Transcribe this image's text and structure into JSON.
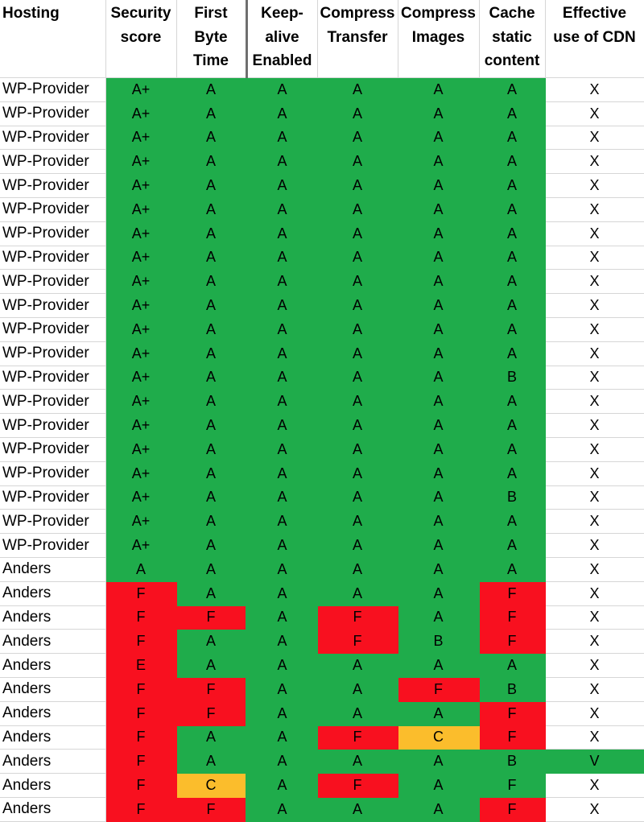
{
  "headers": [
    "Hosting",
    "Security score",
    "First Byte Time",
    "Keep-alive Enabled",
    "Compress Transfer",
    "Compress Images",
    "Cache static content",
    "Effective use of CDN"
  ],
  "header_lines": [
    [
      "Hosting"
    ],
    [
      "Security",
      "score"
    ],
    [
      "First",
      "Byte",
      "Time"
    ],
    [
      "Keep-",
      "alive",
      "Enabled"
    ],
    [
      "Compress",
      "Transfer"
    ],
    [
      "Compress",
      "Images"
    ],
    [
      "Cache",
      "static",
      "content"
    ],
    [
      "Effective",
      "use of CDN"
    ]
  ],
  "colors": {
    "green": "#1fac4b",
    "red": "#f8101f",
    "yellow": "#fbbd2c",
    "white": "#ffffff"
  },
  "rows": [
    {
      "host": "WP-Provider",
      "cells": [
        [
          "A+",
          "g"
        ],
        [
          "A",
          "g"
        ],
        [
          "A",
          "g"
        ],
        [
          "A",
          "g"
        ],
        [
          "A",
          "g"
        ],
        [
          "A",
          "g"
        ],
        [
          "X",
          "w"
        ]
      ]
    },
    {
      "host": "WP-Provider",
      "cells": [
        [
          "A+",
          "g"
        ],
        [
          "A",
          "g"
        ],
        [
          "A",
          "g"
        ],
        [
          "A",
          "g"
        ],
        [
          "A",
          "g"
        ],
        [
          "A",
          "g"
        ],
        [
          "X",
          "w"
        ]
      ]
    },
    {
      "host": "WP-Provider",
      "cells": [
        [
          "A+",
          "g"
        ],
        [
          "A",
          "g"
        ],
        [
          "A",
          "g"
        ],
        [
          "A",
          "g"
        ],
        [
          "A",
          "g"
        ],
        [
          "A",
          "g"
        ],
        [
          "X",
          "w"
        ]
      ]
    },
    {
      "host": "WP-Provider",
      "cells": [
        [
          "A+",
          "g"
        ],
        [
          "A",
          "g"
        ],
        [
          "A",
          "g"
        ],
        [
          "A",
          "g"
        ],
        [
          "A",
          "g"
        ],
        [
          "A",
          "g"
        ],
        [
          "X",
          "w"
        ]
      ]
    },
    {
      "host": "WP-Provider",
      "cells": [
        [
          "A+",
          "g"
        ],
        [
          "A",
          "g"
        ],
        [
          "A",
          "g"
        ],
        [
          "A",
          "g"
        ],
        [
          "A",
          "g"
        ],
        [
          "A",
          "g"
        ],
        [
          "X",
          "w"
        ]
      ]
    },
    {
      "host": "WP-Provider",
      "cells": [
        [
          "A+",
          "g"
        ],
        [
          "A",
          "g"
        ],
        [
          "A",
          "g"
        ],
        [
          "A",
          "g"
        ],
        [
          "A",
          "g"
        ],
        [
          "A",
          "g"
        ],
        [
          "X",
          "w"
        ]
      ]
    },
    {
      "host": "WP-Provider",
      "cells": [
        [
          "A+",
          "g"
        ],
        [
          "A",
          "g"
        ],
        [
          "A",
          "g"
        ],
        [
          "A",
          "g"
        ],
        [
          "A",
          "g"
        ],
        [
          "A",
          "g"
        ],
        [
          "X",
          "w"
        ]
      ]
    },
    {
      "host": "WP-Provider",
      "cells": [
        [
          "A+",
          "g"
        ],
        [
          "A",
          "g"
        ],
        [
          "A",
          "g"
        ],
        [
          "A",
          "g"
        ],
        [
          "A",
          "g"
        ],
        [
          "A",
          "g"
        ],
        [
          "X",
          "w"
        ]
      ]
    },
    {
      "host": "WP-Provider",
      "cells": [
        [
          "A+",
          "g"
        ],
        [
          "A",
          "g"
        ],
        [
          "A",
          "g"
        ],
        [
          "A",
          "g"
        ],
        [
          "A",
          "g"
        ],
        [
          "A",
          "g"
        ],
        [
          "X",
          "w"
        ]
      ]
    },
    {
      "host": "WP-Provider",
      "cells": [
        [
          "A+",
          "g"
        ],
        [
          "A",
          "g"
        ],
        [
          "A",
          "g"
        ],
        [
          "A",
          "g"
        ],
        [
          "A",
          "g"
        ],
        [
          "A",
          "g"
        ],
        [
          "X",
          "w"
        ]
      ]
    },
    {
      "host": "WP-Provider",
      "cells": [
        [
          "A+",
          "g"
        ],
        [
          "A",
          "g"
        ],
        [
          "A",
          "g"
        ],
        [
          "A",
          "g"
        ],
        [
          "A",
          "g"
        ],
        [
          "A",
          "g"
        ],
        [
          "X",
          "w"
        ]
      ]
    },
    {
      "host": "WP-Provider",
      "cells": [
        [
          "A+",
          "g"
        ],
        [
          "A",
          "g"
        ],
        [
          "A",
          "g"
        ],
        [
          "A",
          "g"
        ],
        [
          "A",
          "g"
        ],
        [
          "A",
          "g"
        ],
        [
          "X",
          "w"
        ]
      ]
    },
    {
      "host": "WP-Provider",
      "cells": [
        [
          "A+",
          "g"
        ],
        [
          "A",
          "g"
        ],
        [
          "A",
          "g"
        ],
        [
          "A",
          "g"
        ],
        [
          "A",
          "g"
        ],
        [
          "B",
          "g"
        ],
        [
          "X",
          "w"
        ]
      ]
    },
    {
      "host": "WP-Provider",
      "cells": [
        [
          "A+",
          "g"
        ],
        [
          "A",
          "g"
        ],
        [
          "A",
          "g"
        ],
        [
          "A",
          "g"
        ],
        [
          "A",
          "g"
        ],
        [
          "A",
          "g"
        ],
        [
          "X",
          "w"
        ]
      ]
    },
    {
      "host": "WP-Provider",
      "cells": [
        [
          "A+",
          "g"
        ],
        [
          "A",
          "g"
        ],
        [
          "A",
          "g"
        ],
        [
          "A",
          "g"
        ],
        [
          "A",
          "g"
        ],
        [
          "A",
          "g"
        ],
        [
          "X",
          "w"
        ]
      ]
    },
    {
      "host": "WP-Provider",
      "cells": [
        [
          "A+",
          "g"
        ],
        [
          "A",
          "g"
        ],
        [
          "A",
          "g"
        ],
        [
          "A",
          "g"
        ],
        [
          "A",
          "g"
        ],
        [
          "A",
          "g"
        ],
        [
          "X",
          "w"
        ]
      ]
    },
    {
      "host": "WP-Provider",
      "cells": [
        [
          "A+",
          "g"
        ],
        [
          "A",
          "g"
        ],
        [
          "A",
          "g"
        ],
        [
          "A",
          "g"
        ],
        [
          "A",
          "g"
        ],
        [
          "A",
          "g"
        ],
        [
          "X",
          "w"
        ]
      ]
    },
    {
      "host": "WP-Provider",
      "cells": [
        [
          "A+",
          "g"
        ],
        [
          "A",
          "g"
        ],
        [
          "A",
          "g"
        ],
        [
          "A",
          "g"
        ],
        [
          "A",
          "g"
        ],
        [
          "B",
          "g"
        ],
        [
          "X",
          "w"
        ]
      ]
    },
    {
      "host": "WP-Provider",
      "cells": [
        [
          "A+",
          "g"
        ],
        [
          "A",
          "g"
        ],
        [
          "A",
          "g"
        ],
        [
          "A",
          "g"
        ],
        [
          "A",
          "g"
        ],
        [
          "A",
          "g"
        ],
        [
          "X",
          "w"
        ]
      ]
    },
    {
      "host": "WP-Provider",
      "cells": [
        [
          "A+",
          "g"
        ],
        [
          "A",
          "g"
        ],
        [
          "A",
          "g"
        ],
        [
          "A",
          "g"
        ],
        [
          "A",
          "g"
        ],
        [
          "A",
          "g"
        ],
        [
          "X",
          "w"
        ]
      ]
    },
    {
      "host": "Anders",
      "cells": [
        [
          "A",
          "g"
        ],
        [
          "A",
          "g"
        ],
        [
          "A",
          "g"
        ],
        [
          "A",
          "g"
        ],
        [
          "A",
          "g"
        ],
        [
          "A",
          "g"
        ],
        [
          "X",
          "w"
        ]
      ]
    },
    {
      "host": "Anders",
      "cells": [
        [
          "F",
          "r"
        ],
        [
          "A",
          "g"
        ],
        [
          "A",
          "g"
        ],
        [
          "A",
          "g"
        ],
        [
          "A",
          "g"
        ],
        [
          "F",
          "r"
        ],
        [
          "X",
          "w"
        ]
      ]
    },
    {
      "host": "Anders",
      "cells": [
        [
          "F",
          "r"
        ],
        [
          "F",
          "r"
        ],
        [
          "A",
          "g"
        ],
        [
          "F",
          "r"
        ],
        [
          "A",
          "g"
        ],
        [
          "F",
          "r"
        ],
        [
          "X",
          "w"
        ]
      ]
    },
    {
      "host": "Anders",
      "cells": [
        [
          "F",
          "r"
        ],
        [
          "A",
          "g"
        ],
        [
          "A",
          "g"
        ],
        [
          "F",
          "r"
        ],
        [
          "B",
          "g"
        ],
        [
          "F",
          "r"
        ],
        [
          "X",
          "w"
        ]
      ]
    },
    {
      "host": "Anders",
      "cells": [
        [
          "E",
          "r"
        ],
        [
          "A",
          "g"
        ],
        [
          "A",
          "g"
        ],
        [
          "A",
          "g"
        ],
        [
          "A",
          "g"
        ],
        [
          "A",
          "g"
        ],
        [
          "X",
          "w"
        ]
      ]
    },
    {
      "host": "Anders",
      "cells": [
        [
          "F",
          "r"
        ],
        [
          "F",
          "r"
        ],
        [
          "A",
          "g"
        ],
        [
          "A",
          "g"
        ],
        [
          "F",
          "r"
        ],
        [
          "B",
          "g"
        ],
        [
          "X",
          "w"
        ]
      ]
    },
    {
      "host": "Anders",
      "cells": [
        [
          "F",
          "r"
        ],
        [
          "F",
          "r"
        ],
        [
          "A",
          "g"
        ],
        [
          "A",
          "g"
        ],
        [
          "A",
          "g"
        ],
        [
          "F",
          "r"
        ],
        [
          "X",
          "w"
        ]
      ]
    },
    {
      "host": "Anders",
      "cells": [
        [
          "F",
          "r"
        ],
        [
          "A",
          "g"
        ],
        [
          "A",
          "g"
        ],
        [
          "F",
          "r"
        ],
        [
          "C",
          "y"
        ],
        [
          "F",
          "r"
        ],
        [
          "X",
          "w"
        ]
      ]
    },
    {
      "host": "Anders",
      "cells": [
        [
          "F",
          "r"
        ],
        [
          "A",
          "g"
        ],
        [
          "A",
          "g"
        ],
        [
          "A",
          "g"
        ],
        [
          "A",
          "g"
        ],
        [
          "B",
          "g"
        ],
        [
          "V",
          "g"
        ]
      ]
    },
    {
      "host": "Anders",
      "cells": [
        [
          "F",
          "r"
        ],
        [
          "C",
          "y"
        ],
        [
          "A",
          "g"
        ],
        [
          "F",
          "r"
        ],
        [
          "A",
          "g"
        ],
        [
          "F",
          "g"
        ],
        [
          "X",
          "w"
        ]
      ]
    },
    {
      "host": "Anders",
      "cells": [
        [
          "F",
          "r"
        ],
        [
          "F",
          "r"
        ],
        [
          "A",
          "g"
        ],
        [
          "A",
          "g"
        ],
        [
          "A",
          "g"
        ],
        [
          "F",
          "r"
        ],
        [
          "X",
          "w"
        ]
      ]
    }
  ]
}
